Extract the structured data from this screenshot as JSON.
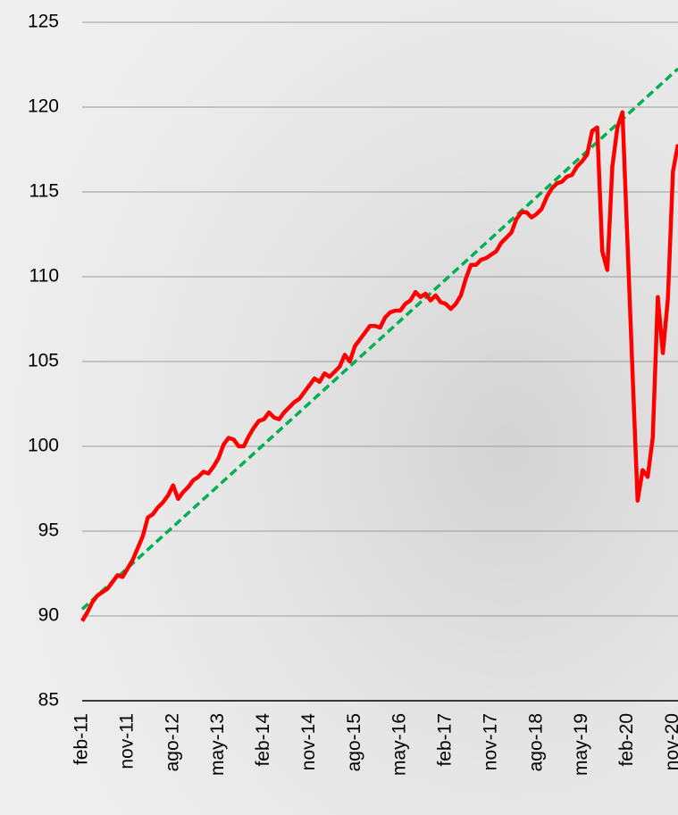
{
  "chart_data": {
    "type": "line",
    "categories": [
      "feb-11",
      null,
      null,
      null,
      null,
      null,
      null,
      null,
      null,
      "nov-11",
      null,
      null,
      null,
      null,
      null,
      null,
      null,
      null,
      "ago-12",
      null,
      null,
      null,
      null,
      null,
      null,
      null,
      null,
      "may-13",
      null,
      null,
      null,
      null,
      null,
      null,
      null,
      null,
      "feb-14",
      null,
      null,
      null,
      null,
      null,
      null,
      null,
      null,
      "nov-14",
      null,
      null,
      null,
      null,
      null,
      null,
      null,
      null,
      "ago-15",
      null,
      null,
      null,
      null,
      null,
      null,
      null,
      null,
      "may-16",
      null,
      null,
      null,
      null,
      null,
      null,
      null,
      null,
      "feb-17",
      null,
      null,
      null,
      null,
      null,
      null,
      null,
      null,
      "nov-17",
      null,
      null,
      null,
      null,
      null,
      null,
      null,
      null,
      "ago-18",
      null,
      null,
      null,
      null,
      null,
      null,
      null,
      null,
      "may-19",
      null,
      null,
      null,
      null,
      null,
      null,
      null,
      null,
      "feb-20",
      null,
      null,
      null,
      null,
      null,
      null,
      null,
      null,
      "nov-20",
      null
    ],
    "series": [
      {
        "color": "#ff0000",
        "dashed": false,
        "values": [
          89.7,
          90.2,
          90.8,
          91.2,
          91.4,
          91.6,
          92.0,
          92.4,
          92.3,
          92.8,
          93.3,
          94.0,
          94.7,
          95.8,
          96.0,
          96.4,
          96.7,
          97.1,
          97.7,
          96.9,
          97.3,
          97.6,
          98.0,
          98.2,
          98.5,
          98.4,
          98.8,
          99.3,
          100.1,
          100.5,
          100.4,
          100.0,
          100.0,
          100.6,
          101.1,
          101.5,
          101.6,
          102.0,
          101.7,
          101.6,
          102.0,
          102.3,
          102.6,
          102.8,
          103.2,
          103.6,
          104.0,
          103.8,
          104.3,
          104.1,
          104.4,
          104.7,
          105.4,
          105.0,
          105.9,
          106.3,
          106.7,
          107.1,
          107.1,
          107.0,
          107.6,
          107.9,
          108.0,
          108.0,
          108.4,
          108.6,
          109.1,
          108.8,
          109.0,
          108.6,
          108.9,
          108.5,
          108.4,
          108.1,
          108.4,
          108.9,
          109.9,
          110.7,
          110.7,
          111.0,
          111.1,
          111.3,
          111.5,
          112.0,
          112.3,
          112.6,
          113.4,
          113.8,
          113.8,
          113.5,
          113.7,
          114.0,
          114.7,
          115.2,
          115.5,
          115.6,
          115.9,
          116.0,
          116.5,
          116.8,
          117.2,
          118.6,
          118.8,
          111.5,
          110.4,
          116.5,
          118.8,
          119.7,
          112.0,
          104.3,
          96.8,
          98.6,
          98.2,
          100.5,
          108.8,
          105.5,
          108.7,
          116.2,
          117.8
        ]
      },
      {
        "color": "#00b050",
        "dashed": true,
        "values": [
          90.4,
          90.67,
          90.94,
          91.21,
          91.48,
          91.75,
          92.02,
          92.29,
          92.56,
          92.83,
          93.1,
          93.37,
          93.64,
          93.91,
          94.18,
          94.45,
          94.72,
          94.99,
          95.26,
          95.53,
          95.8,
          96.07,
          96.34,
          96.61,
          96.88,
          97.15,
          97.42,
          97.69,
          97.96,
          98.23,
          98.5,
          98.77,
          99.04,
          99.31,
          99.58,
          99.85,
          100.12,
          100.39,
          100.66,
          100.93,
          101.2,
          101.47,
          101.74,
          102.01,
          102.28,
          102.55,
          102.82,
          103.09,
          103.36,
          103.63,
          103.9,
          104.17,
          104.44,
          104.71,
          104.98,
          105.25,
          105.52,
          105.79,
          106.06,
          106.33,
          106.6,
          106.87,
          107.14,
          107.41,
          107.68,
          107.95,
          108.22,
          108.49,
          108.76,
          109.03,
          109.3,
          109.57,
          109.84,
          110.11,
          110.38,
          110.65,
          110.92,
          111.19,
          111.46,
          111.73,
          112.0,
          112.27,
          112.54,
          112.81,
          113.08,
          113.35,
          113.62,
          113.89,
          114.16,
          114.43,
          114.7,
          114.97,
          115.24,
          115.51,
          115.78,
          116.05,
          116.32,
          116.59,
          116.86,
          117.13,
          117.4,
          117.67,
          117.94,
          118.21,
          118.48,
          118.75,
          119.02,
          119.29,
          119.56,
          119.83,
          120.1,
          120.37,
          120.64,
          120.91,
          121.18,
          121.45,
          121.72,
          121.99,
          122.26
        ]
      }
    ],
    "ylim": [
      85,
      125
    ],
    "yticks": [
      85,
      90,
      95,
      100,
      105,
      110,
      115,
      120,
      125
    ],
    "grid": true
  }
}
